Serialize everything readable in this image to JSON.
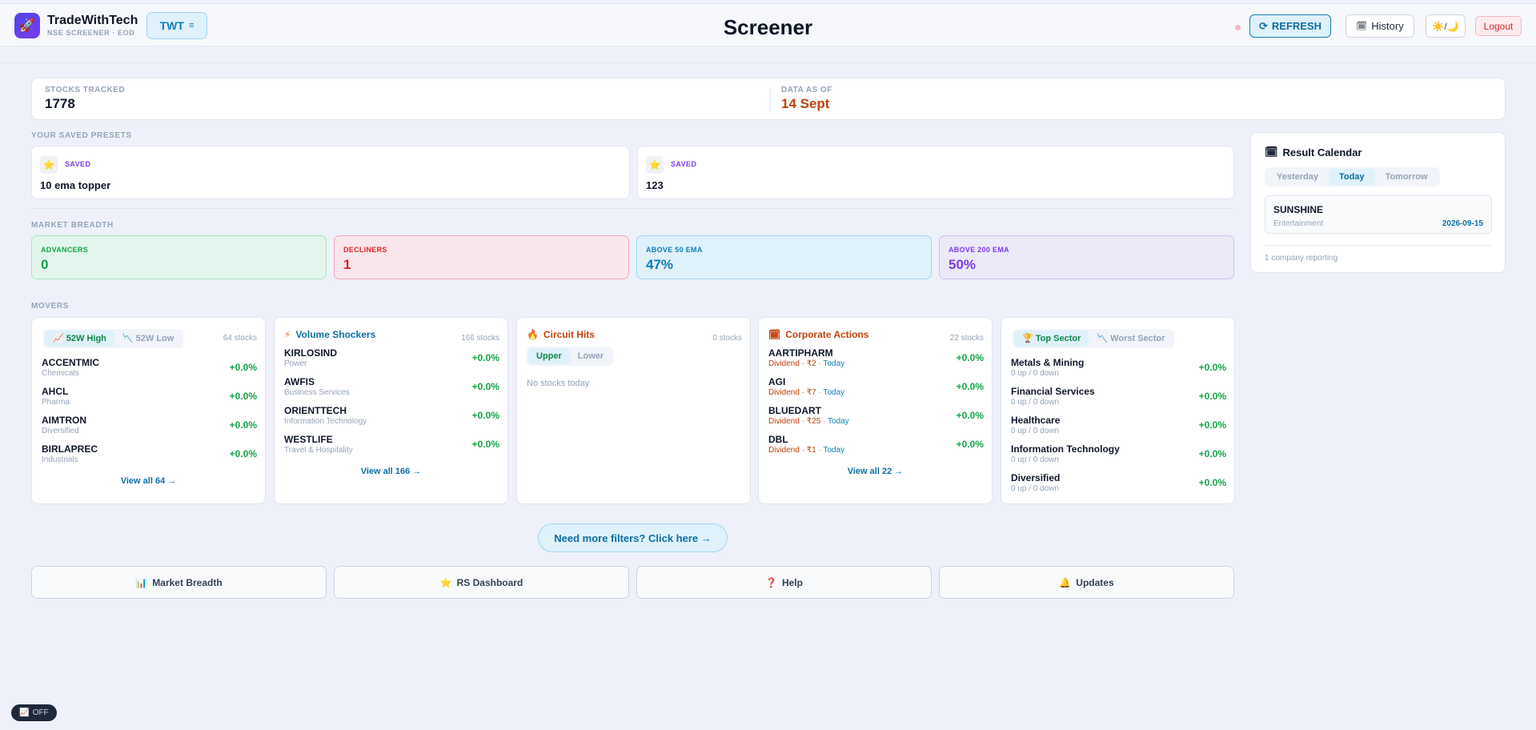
{
  "header": {
    "brand_name": "TradeWithTech",
    "brand_sub": "NSE SCREENER · EOD",
    "twt_label": "TWT",
    "title": "Screener",
    "refresh_label": "REFRESH",
    "history_label": "History",
    "theme_label": "☀️/🌙",
    "logout_label": "Logout"
  },
  "stats": {
    "tracked_label": "STOCKS TRACKED",
    "tracked_value": "1778",
    "asof_label": "DATA AS OF",
    "asof_value": "14 Sept"
  },
  "presets": {
    "section_label": "YOUR SAVED PRESETS",
    "items": [
      {
        "tag": "SAVED",
        "name": "10 ema topper"
      },
      {
        "tag": "SAVED",
        "name": "123"
      }
    ]
  },
  "breadth": {
    "section_label": "MARKET BREADTH",
    "items": [
      {
        "label": "ADVANCERS",
        "value": "0",
        "color": "#16a34a"
      },
      {
        "label": "DECLINERS",
        "value": "1",
        "color": "#dc2626"
      },
      {
        "label": "ABOVE 50 EMA",
        "value": "47%",
        "color": "#0e7fb8"
      },
      {
        "label": "ABOVE 200 EMA",
        "value": "50%",
        "color": "#7c3aed"
      }
    ]
  },
  "movers": {
    "section_label": "MOVERS",
    "highs": {
      "tab_active": "52W High",
      "tab_inactive": "52W Low",
      "count": "64 stocks",
      "rows": [
        {
          "name": "ACCENTMIC",
          "sub": "Chemicals",
          "pct": "+0.0%"
        },
        {
          "name": "AHCL",
          "sub": "Pharma",
          "pct": "+0.0%"
        },
        {
          "name": "AIMTRON",
          "sub": "Diversified",
          "pct": "+0.0%"
        },
        {
          "name": "BIRLAPREC",
          "sub": "Industrials",
          "pct": "+0.0%"
        }
      ],
      "view_all": "View all 64 →"
    },
    "volume": {
      "title": "Volume Shockers",
      "count": "166 stocks",
      "rows": [
        {
          "name": "KIRLOSIND",
          "sub": "Power",
          "pct": "+0.0%"
        },
        {
          "name": "AWFIS",
          "sub": "Business Services",
          "pct": "+0.0%"
        },
        {
          "name": "ORIENTTECH",
          "sub": "Information Technology",
          "pct": "+0.0%"
        },
        {
          "name": "WESTLIFE",
          "sub": "Travel & Hospitality",
          "pct": "+0.0%"
        }
      ],
      "view_all": "View all 166 →"
    },
    "circuit": {
      "title": "Circuit Hits",
      "count": "0 stocks",
      "tab_active": "Upper",
      "tab_inactive": "Lower",
      "empty": "No stocks today"
    },
    "corporate": {
      "title": "Corporate Actions",
      "count": "22 stocks",
      "rows": [
        {
          "name": "AARTIPHARM",
          "action": "Dividend · ₹2",
          "when": "Today",
          "pct": "+0.0%"
        },
        {
          "name": "AGI",
          "action": "Dividend · ₹7",
          "when": "Today",
          "pct": "+0.0%"
        },
        {
          "name": "BLUEDART",
          "action": "Dividend · ₹25",
          "when": "Today",
          "pct": "+0.0%"
        },
        {
          "name": "DBL",
          "action": "Dividend · ₹1",
          "when": "Today",
          "pct": "+0.0%"
        }
      ],
      "view_all": "View all 22 →"
    },
    "sector": {
      "tab_active": "Top Sector",
      "tab_inactive": "Worst Sector",
      "rows": [
        {
          "name": "Metals & Mining",
          "sub": "0 up / 0 down",
          "pct": "+0.0%"
        },
        {
          "name": "Financial Services",
          "sub": "0 up / 0 down",
          "pct": "+0.0%"
        },
        {
          "name": "Healthcare",
          "sub": "0 up / 0 down",
          "pct": "+0.0%"
        },
        {
          "name": "Information Technology",
          "sub": "0 up / 0 down",
          "pct": "+0.0%"
        },
        {
          "name": "Diversified",
          "sub": "0 up / 0 down",
          "pct": "+0.0%"
        }
      ]
    }
  },
  "calendar": {
    "title": "Result Calendar",
    "tabs": [
      "Yesterday",
      "Today",
      "Tomorrow"
    ],
    "item": {
      "name": "SUNSHINE",
      "sub": "Entertainment",
      "date": "2026-09-15"
    },
    "footer": "1 company reporting"
  },
  "more_filters": "Need more filters? Click here →",
  "nav": [
    "Market Breadth",
    "RS Dashboard",
    "Help",
    "Updates"
  ],
  "toggle": "OFF"
}
